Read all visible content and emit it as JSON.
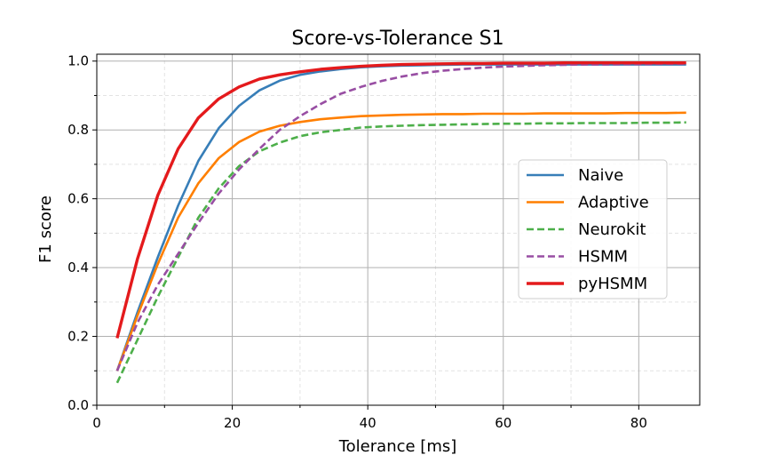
{
  "chart_data": {
    "type": "line",
    "title": "Score-vs-Tolerance S1",
    "xlabel": "Tolerance [ms]",
    "ylabel": "F1 score",
    "xlim": [
      0,
      89
    ],
    "ylim": [
      0,
      1.02
    ],
    "xticks": [
      0,
      20,
      40,
      60,
      80
    ],
    "xtick_labels": [
      "0",
      "20",
      "40",
      "60",
      "80"
    ],
    "yticks": [
      0.0,
      0.2,
      0.4,
      0.6,
      0.8,
      1.0
    ],
    "ytick_labels": [
      "0.0",
      "0.2",
      "0.4",
      "0.6",
      "0.8",
      "1.0"
    ],
    "grid": true,
    "legend_position": "center-right",
    "x": [
      3,
      6,
      9,
      12,
      15,
      18,
      21,
      24,
      27,
      30,
      33,
      36,
      39,
      42,
      45,
      48,
      51,
      54,
      57,
      60,
      63,
      66,
      69,
      72,
      75,
      78,
      81,
      84,
      87
    ],
    "series": [
      {
        "name": "Naive",
        "color": "#377eb8",
        "dash": "solid",
        "values": [
          0.1,
          0.27,
          0.43,
          0.58,
          0.71,
          0.805,
          0.87,
          0.915,
          0.943,
          0.96,
          0.97,
          0.977,
          0.982,
          0.985,
          0.987,
          0.988,
          0.989,
          0.99,
          0.99,
          0.99,
          0.99,
          0.99,
          0.99,
          0.99,
          0.99,
          0.99,
          0.99,
          0.99,
          0.99
        ]
      },
      {
        "name": "Adaptive",
        "color": "#ff7f00",
        "dash": "solid",
        "values": [
          0.1,
          0.26,
          0.41,
          0.545,
          0.645,
          0.718,
          0.765,
          0.795,
          0.812,
          0.823,
          0.831,
          0.836,
          0.84,
          0.842,
          0.844,
          0.845,
          0.846,
          0.846,
          0.847,
          0.847,
          0.847,
          0.848,
          0.848,
          0.848,
          0.848,
          0.849,
          0.849,
          0.849,
          0.85
        ]
      },
      {
        "name": "Neurokit",
        "color": "#4daf4a",
        "dash": "dashed",
        "values": [
          0.065,
          0.19,
          0.315,
          0.43,
          0.545,
          0.63,
          0.695,
          0.738,
          0.763,
          0.782,
          0.793,
          0.8,
          0.807,
          0.81,
          0.812,
          0.814,
          0.815,
          0.816,
          0.817,
          0.818,
          0.818,
          0.819,
          0.819,
          0.82,
          0.82,
          0.82,
          0.821,
          0.821,
          0.822
        ]
      },
      {
        "name": "HSMM",
        "color": "#984ea3",
        "dash": "dashed",
        "values": [
          0.1,
          0.24,
          0.35,
          0.44,
          0.53,
          0.615,
          0.685,
          0.745,
          0.8,
          0.84,
          0.875,
          0.905,
          0.925,
          0.942,
          0.955,
          0.965,
          0.972,
          0.977,
          0.981,
          0.984,
          0.986,
          0.988,
          0.989,
          0.99,
          0.99,
          0.991,
          0.991,
          0.992,
          0.992
        ]
      },
      {
        "name": "pyHSMM",
        "color": "#e41a1c",
        "dash": "solid",
        "values": [
          0.195,
          0.425,
          0.61,
          0.745,
          0.835,
          0.89,
          0.925,
          0.948,
          0.96,
          0.969,
          0.976,
          0.981,
          0.985,
          0.988,
          0.99,
          0.991,
          0.992,
          0.993,
          0.993,
          0.994,
          0.994,
          0.994,
          0.995,
          0.995,
          0.995,
          0.995,
          0.995,
          0.995,
          0.995
        ]
      }
    ]
  }
}
